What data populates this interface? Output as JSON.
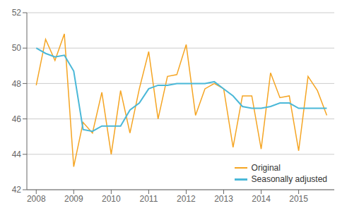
{
  "chart_data": {
    "type": "line",
    "x": [
      2008.0,
      2008.25,
      2008.5,
      2008.75,
      2009.0,
      2009.25,
      2009.5,
      2009.75,
      2010.0,
      2010.25,
      2010.5,
      2010.75,
      2011.0,
      2011.25,
      2011.5,
      2011.75,
      2012.0,
      2012.25,
      2012.5,
      2012.75,
      2013.0,
      2013.25,
      2013.5,
      2013.75,
      2014.0,
      2014.25,
      2014.5,
      2014.75,
      2015.0,
      2015.25,
      2015.5,
      2015.75
    ],
    "series": [
      {
        "name": "Original",
        "color": "#f5a523",
        "values": [
          47.9,
          50.5,
          49.3,
          50.8,
          43.3,
          45.8,
          45.2,
          47.5,
          44.0,
          47.6,
          45.2,
          47.7,
          49.8,
          46.0,
          48.4,
          48.5,
          50.2,
          46.2,
          47.7,
          48.0,
          47.7,
          44.4,
          47.3,
          47.3,
          44.3,
          48.6,
          47.2,
          47.3,
          44.2,
          48.4,
          47.6,
          46.2
        ]
      },
      {
        "name": "Seasonally adjusted",
        "color": "#4ab8d8",
        "values": [
          50.0,
          49.7,
          49.5,
          49.6,
          48.7,
          45.4,
          45.3,
          45.6,
          45.6,
          45.6,
          46.5,
          46.9,
          47.7,
          47.9,
          47.9,
          48.0,
          48.0,
          48.0,
          48.0,
          48.1,
          47.7,
          47.3,
          46.7,
          46.6,
          46.6,
          46.7,
          46.9,
          46.9,
          46.6,
          46.6,
          46.6,
          46.6
        ]
      }
    ],
    "xlim": [
      2007.75,
      2015.95
    ],
    "xticks": [
      2008,
      2009,
      2010,
      2011,
      2012,
      2013,
      2014,
      2015
    ],
    "ylim": [
      42,
      52
    ],
    "yticks": [
      42,
      44,
      46,
      48,
      50,
      52
    ],
    "grid": true,
    "legend": "lower right"
  }
}
